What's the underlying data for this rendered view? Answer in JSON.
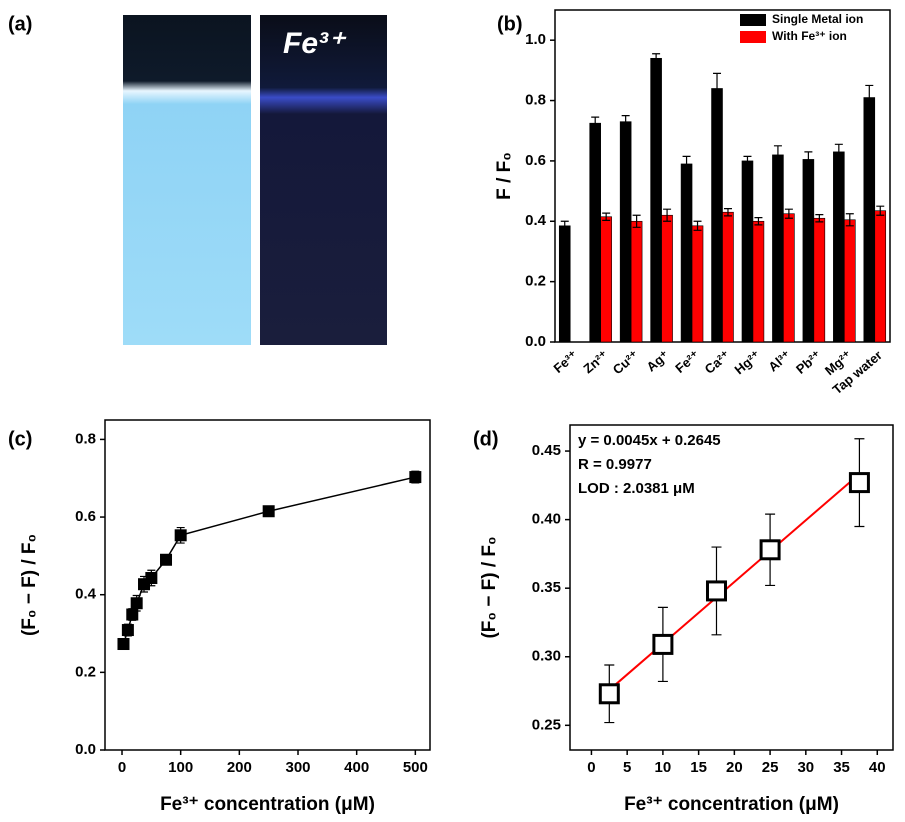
{
  "photo_panel": {
    "label": "(a)",
    "caption": "Fe³⁺"
  },
  "chart_data": [
    {
      "type": "bar",
      "label": "(b)",
      "y_label": "F / F₀",
      "categories": [
        "Fe³⁺",
        "Zn²⁺",
        "Cu²⁺",
        "Ag⁺",
        "Fe²⁺",
        "Ca²⁺",
        "Hg²⁺",
        "Al³⁺",
        "Pb²⁺",
        "Mg²⁺",
        "Tap water"
      ],
      "series": [
        {
          "name": "Single Metal ion",
          "color": "#000000",
          "values": [
            0.385,
            0.725,
            0.73,
            0.94,
            0.59,
            0.84,
            0.6,
            0.62,
            0.605,
            0.63,
            0.81
          ],
          "errors": [
            0.015,
            0.02,
            0.02,
            0.015,
            0.025,
            0.05,
            0.015,
            0.03,
            0.025,
            0.025,
            0.04
          ]
        },
        {
          "name": "With Fe³⁺ ion",
          "color": "#ff0000",
          "values": [
            null,
            0.415,
            0.4,
            0.42,
            0.385,
            0.43,
            0.4,
            0.425,
            0.41,
            0.405,
            0.435
          ],
          "errors": [
            null,
            0.012,
            0.02,
            0.02,
            0.015,
            0.012,
            0.012,
            0.015,
            0.012,
            0.02,
            0.015
          ]
        }
      ],
      "ylim": [
        0,
        1.1
      ],
      "yticks": [
        {
          "value": 0,
          "label": "0.0"
        },
        0.2,
        0.4,
        0.6,
        0.8,
        {
          "value": 1,
          "label": "1.0"
        }
      ],
      "legend": "top-right"
    },
    {
      "type": "line",
      "label": "(c)",
      "x_label": "Fe³⁺ concentration (μM)",
      "y_label": "(F₀ − F) / F₀",
      "x": [
        2.5,
        10,
        17.5,
        25,
        37.5,
        50,
        75,
        100,
        250,
        500
      ],
      "series": [
        {
          "color": "#000000",
          "values": [
            0.273,
            0.309,
            0.349,
            0.378,
            0.427,
            0.443,
            0.49,
            0.553,
            0.615,
            0.703
          ],
          "errors": [
            0.012,
            0.015,
            0.015,
            0.02,
            0.02,
            0.02,
            0.012,
            0.02,
            0.01,
            0.015
          ]
        }
      ],
      "xlim": [
        -29,
        525
      ],
      "xticks": [
        0,
        100,
        200,
        300,
        400,
        500
      ],
      "ylim": [
        0,
        0.85
      ],
      "yticks": [
        {
          "value": 0,
          "label": "0.0"
        },
        0.2,
        0.4,
        0.6,
        0.8
      ]
    },
    {
      "type": "scatter",
      "label": "(d)",
      "x_label": "Fe³⁺ concentration (μM)",
      "y_label": "(F₀ − F) / F₀",
      "x": [
        2.5,
        10,
        17.5,
        25,
        37.5
      ],
      "series": [
        {
          "color": "#000000",
          "values": [
            0.273,
            0.309,
            0.348,
            0.378,
            0.427
          ],
          "errors": [
            0.021,
            0.027,
            0.032,
            0.026,
            0.032
          ]
        }
      ],
      "fit_line": {
        "color": "#ff0000",
        "x": [
          2.5,
          37.5
        ],
        "y": [
          0.2758,
          0.4333
        ]
      },
      "annotations": [
        "y = 0.0045x + 0.2645",
        "R = 0.9977",
        "LOD : 2.0381 μM"
      ],
      "xlim": [
        -3,
        42.2
      ],
      "xticks": [
        0,
        5,
        10,
        15,
        20,
        25,
        30,
        35,
        40
      ],
      "ylim": [
        0.232,
        0.469
      ],
      "yticks": [
        0.25,
        {
          "value": 0.3,
          "label": "0.30"
        },
        0.35,
        {
          "value": 0.4,
          "label": "0.40"
        },
        0.45
      ]
    }
  ]
}
